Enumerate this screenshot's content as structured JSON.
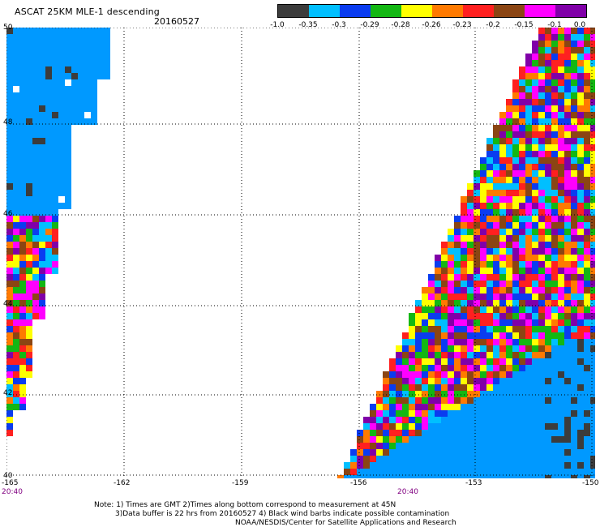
{
  "header": {
    "title": "ASCAT 25KM MLE-1 descending",
    "date": "20160527"
  },
  "colorbar": {
    "colors": [
      "#3c3c3c",
      "#00bfff",
      "#0a3cf0",
      "#13b713",
      "#ffff00",
      "#ff7a00",
      "#ff2020",
      "#8b4513",
      "#ff00ff",
      "#8000a8"
    ],
    "labels": [
      "-1.0",
      "-0.35",
      "-0.3",
      "-0.29",
      "-0.28",
      "-0.26",
      "-0.23",
      "-0.2",
      "-0.15",
      "-0.1",
      "0.0"
    ]
  },
  "map": {
    "lon_labels": [
      "-165",
      "-162",
      "-159",
      "-156",
      "-153",
      "-150"
    ],
    "lat_labels": [
      "50",
      "48",
      "46",
      "44",
      "42",
      "40"
    ],
    "time_labels": [
      "20:40",
      "20:40"
    ],
    "lon_range": [
      -165,
      -150
    ],
    "lat_range": [
      40,
      50
    ]
  },
  "notes": [
    "Note: 1) Times are GMT 2)Times along bottom correspond to measurement at 45N",
    "3)Data buffer is 22 hrs from 20160527 4) Black wind barbs indicate possible contamination",
    "NOAA/NESDIS/Center for Satellite Applications and Research"
  ]
}
